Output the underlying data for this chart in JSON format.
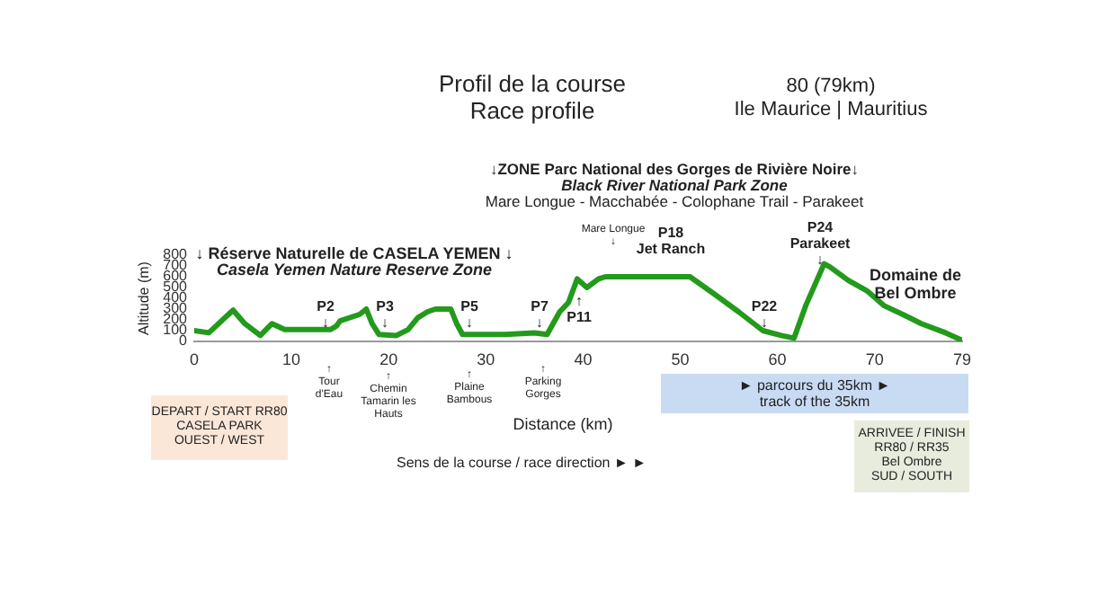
{
  "chart_data": {
    "type": "line",
    "title": "Profil de la course\nRace profile",
    "subtitle": "80 (79km)\nIle Maurice | Mauritius",
    "xlabel": "Distance (km)",
    "ylabel": "Altitude (m)",
    "x": [
      0,
      1.5,
      4,
      5.2,
      6.8,
      8,
      9.3,
      12.7,
      14,
      14.6,
      15,
      17,
      17.7,
      18.3,
      19,
      20.8,
      22,
      23,
      24,
      24.8,
      26.4,
      27,
      27.6,
      32,
      35,
      36.3,
      37.6,
      38.5,
      39.4,
      40.4,
      41.6,
      42.3,
      51,
      53.5,
      56,
      58.5,
      60.4,
      61.7,
      62.9,
      64.8,
      65.4,
      67.3,
      69.2,
      71,
      72.9,
      74.8,
      77.3,
      79
    ],
    "series": [
      {
        "color": "#239a1c",
        "values": [
          100,
          80,
          290,
          165,
          55,
          165,
          110,
          110,
          110,
          140,
          190,
          250,
          300,
          165,
          65,
          55,
          110,
          220,
          275,
          300,
          300,
          165,
          65,
          65,
          80,
          65,
          275,
          360,
          580,
          500,
          580,
          600,
          600,
          440,
          275,
          100,
          55,
          30,
          330,
          720,
          690,
          565,
          470,
          330,
          250,
          165,
          80,
          10
        ]
      }
    ],
    "xlim": [
      0,
      79
    ],
    "xticks": [
      0,
      10,
      20,
      30,
      40,
      50,
      60,
      70,
      79
    ],
    "ylim": [
      0,
      800
    ],
    "yticks": [
      0,
      100,
      200,
      300,
      400,
      500,
      600,
      700,
      800
    ],
    "grid": false,
    "legend": false,
    "marker": "none",
    "line_style": "solid",
    "annotations": [
      "↓ Réserve Naturelle de CASELA YEMEN  ↓",
      "Casela Yemen Nature Reserve Zone",
      "↓ZONE Parc National des Gorges de Rivière Noire↓",
      "Black River National Park Zone",
      "Mare Longue - Macchabée - Colophane Trail - Parakeet",
      "P2\n↓",
      "P3\n↓",
      "P5\n↓",
      "P7\n↓",
      "↑\nP11",
      "Mare Longue\n↓",
      "P18\nJet Ranch",
      "P22\n↓",
      "P24\nParakeet\n↓",
      "Domaine de\nBel Ombre",
      "↑\nTour\nd'Eau",
      "↑\nChemin\nTamarin les\nHauts",
      "↑\nPlaine\nBambous",
      "↑\nParking\nGorges",
      "DEPART / START RR80\nCASELA PARK\nOUEST / WEST",
      "Sens de la course / race direction   ►  ►",
      "►       parcours du 35km       ►\ntrack of the 35km",
      "ARRIVEE / FINISH\nRR80 / RR35\nBel Ombre\nSUD / SOUTH"
    ]
  }
}
